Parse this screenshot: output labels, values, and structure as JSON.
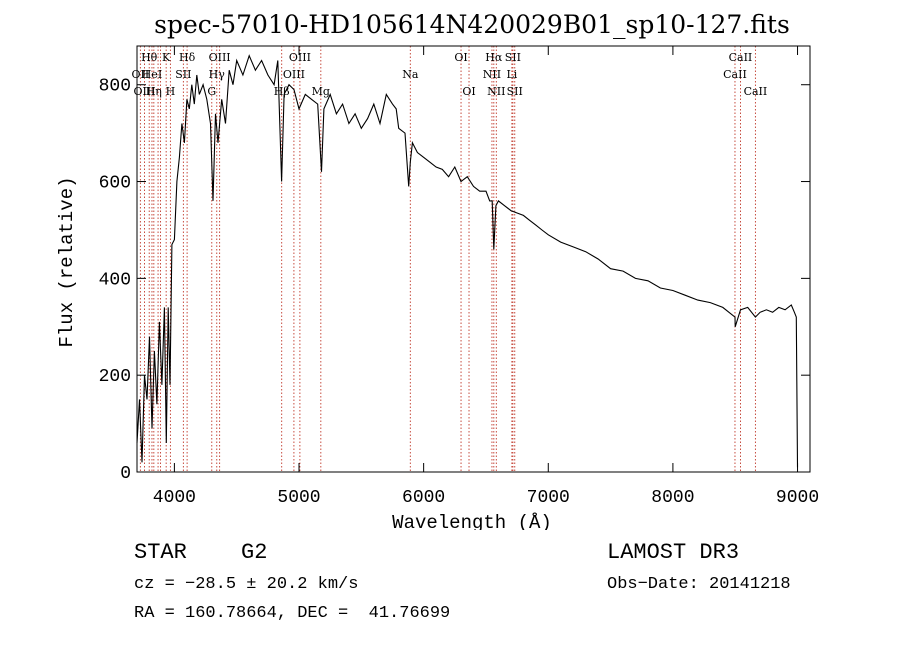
{
  "chart_data": {
    "type": "line",
    "title": "spec-57010-HD105614N420029B01_sp10-127.fits",
    "xlabel": "Wavelength (Å)",
    "ylabel": "Flux (relative)",
    "xlim": [
      3700,
      9100
    ],
    "ylim": [
      0,
      880
    ],
    "xticks": [
      4000,
      5000,
      6000,
      7000,
      8000,
      9000
    ],
    "yticks": [
      0,
      200,
      400,
      600,
      800
    ],
    "series": [
      {
        "name": "flux",
        "x": [
          3700,
          3720,
          3740,
          3760,
          3780,
          3800,
          3820,
          3840,
          3860,
          3880,
          3900,
          3920,
          3935,
          3950,
          3965,
          3980,
          4000,
          4020,
          4040,
          4060,
          4080,
          4100,
          4120,
          4140,
          4160,
          4180,
          4200,
          4230,
          4260,
          4290,
          4310,
          4330,
          4350,
          4380,
          4410,
          4440,
          4470,
          4500,
          4550,
          4600,
          4650,
          4700,
          4750,
          4800,
          4830,
          4860,
          4880,
          4920,
          4960,
          5000,
          5050,
          5100,
          5150,
          5180,
          5200,
          5250,
          5300,
          5350,
          5400,
          5450,
          5500,
          5550,
          5600,
          5650,
          5700,
          5750,
          5780,
          5800,
          5850,
          5880,
          5893,
          5910,
          5950,
          6000,
          6050,
          6100,
          6150,
          6200,
          6250,
          6300,
          6350,
          6400,
          6450,
          6500,
          6530,
          6550,
          6563,
          6580,
          6600,
          6650,
          6700,
          6750,
          6800,
          6850,
          6900,
          6950,
          7000,
          7100,
          7200,
          7300,
          7400,
          7500,
          7600,
          7700,
          7800,
          7900,
          8000,
          8100,
          8200,
          8300,
          8400,
          8498,
          8500,
          8542,
          8600,
          8662,
          8700,
          8750,
          8800,
          8850,
          8900,
          8950,
          8975,
          8990,
          9000
        ],
        "values": [
          60,
          150,
          20,
          200,
          150,
          280,
          90,
          250,
          140,
          310,
          180,
          340,
          60,
          340,
          180,
          470,
          480,
          600,
          650,
          720,
          680,
          770,
          750,
          800,
          760,
          820,
          780,
          800,
          770,
          720,
          560,
          740,
          680,
          770,
          720,
          830,
          800,
          850,
          820,
          860,
          830,
          850,
          820,
          800,
          850,
          600,
          780,
          800,
          790,
          750,
          780,
          770,
          760,
          620,
          750,
          780,
          740,
          760,
          720,
          740,
          710,
          730,
          760,
          720,
          780,
          760,
          750,
          710,
          700,
          590,
          640,
          680,
          660,
          650,
          640,
          630,
          625,
          610,
          630,
          600,
          610,
          590,
          580,
          580,
          560,
          560,
          460,
          550,
          560,
          550,
          540,
          535,
          530,
          520,
          510,
          500,
          490,
          475,
          465,
          455,
          440,
          420,
          415,
          400,
          395,
          380,
          375,
          365,
          355,
          350,
          340,
          320,
          300,
          335,
          340,
          320,
          330,
          335,
          330,
          340,
          335,
          345,
          330,
          320,
          10
        ]
      }
    ],
    "line_markers": [
      {
        "wavelength": 3727,
        "label": "OII",
        "row": 1
      },
      {
        "wavelength": 3760,
        "label": "OIII",
        "row": 2
      },
      {
        "wavelength": 3798,
        "label": "Hθ",
        "row": 0
      },
      {
        "wavelength": 3820,
        "label": "HeI",
        "row": 1
      },
      {
        "wavelength": 3835,
        "label": "Hη",
        "row": 2
      },
      {
        "wavelength": 3869,
        "label": "",
        "row": 0
      },
      {
        "wavelength": 3889,
        "label": "",
        "row": 0
      },
      {
        "wavelength": 3934,
        "label": "K",
        "row": 0
      },
      {
        "wavelength": 3968,
        "label": "H",
        "row": 2
      },
      {
        "wavelength": 4072,
        "label": "SII",
        "row": 1
      },
      {
        "wavelength": 4102,
        "label": "Hδ",
        "row": 0
      },
      {
        "wavelength": 4300,
        "label": "G",
        "row": 2
      },
      {
        "wavelength": 4340,
        "label": "Hγ",
        "row": 1
      },
      {
        "wavelength": 4363,
        "label": "OIII",
        "row": 0
      },
      {
        "wavelength": 4861,
        "label": "Hβ",
        "row": 2
      },
      {
        "wavelength": 4959,
        "label": "OIII",
        "row": 1
      },
      {
        "wavelength": 5007,
        "label": "OIII",
        "row": 0
      },
      {
        "wavelength": 5175,
        "label": "Mg",
        "row": 2
      },
      {
        "wavelength": 5893,
        "label": "Na",
        "row": 1
      },
      {
        "wavelength": 6300,
        "label": "OI",
        "row": 0
      },
      {
        "wavelength": 6364,
        "label": "OI",
        "row": 2
      },
      {
        "wavelength": 6548,
        "label": "NII",
        "row": 1
      },
      {
        "wavelength": 6563,
        "label": "Hα",
        "row": 0
      },
      {
        "wavelength": 6583,
        "label": "NII",
        "row": 2
      },
      {
        "wavelength": 6708,
        "label": "Li",
        "row": 1
      },
      {
        "wavelength": 6716,
        "label": "SII",
        "row": 0
      },
      {
        "wavelength": 6731,
        "label": "SII",
        "row": 2
      },
      {
        "wavelength": 8498,
        "label": "CaII",
        "row": 1
      },
      {
        "wavelength": 8542,
        "label": "CaII",
        "row": 0
      },
      {
        "wavelength": 8662,
        "label": "CaII",
        "row": 2
      }
    ]
  },
  "info": {
    "object_class": "STAR",
    "subclass": "G2",
    "survey": "LAMOST DR3",
    "cz": "cz = −28.5 ± 20.2 km/s",
    "obs_date": "Obs−Date: 20141218",
    "coords": "RA = 160.78664, DEC =  41.76699"
  },
  "colors": {
    "marker": "#c0392b",
    "line": "#000000"
  }
}
